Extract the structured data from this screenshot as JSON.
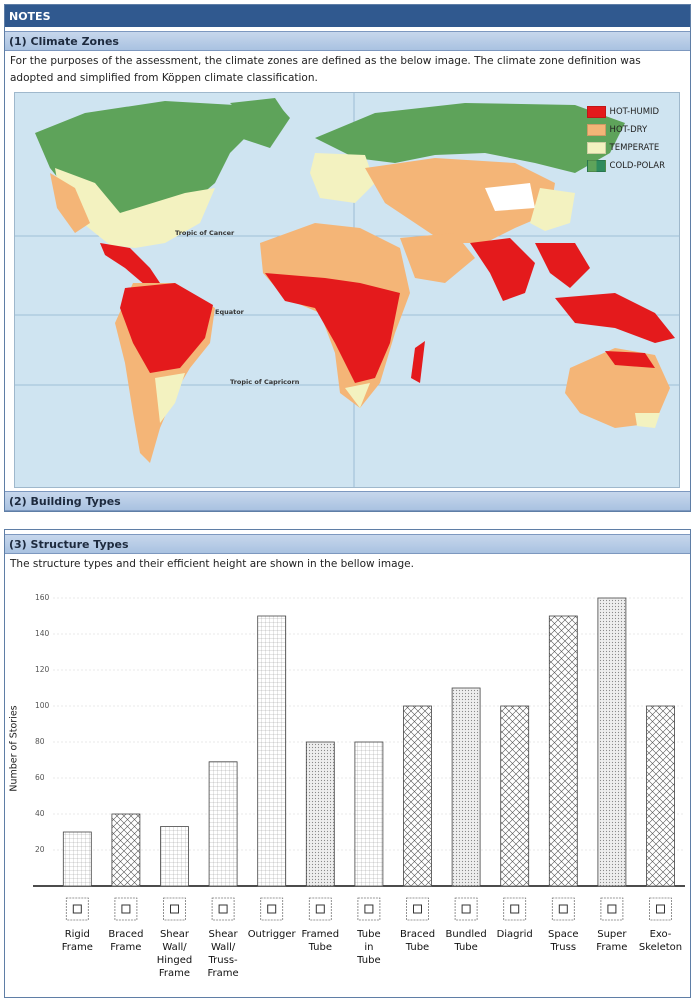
{
  "header": {
    "notes_label": "NOTES"
  },
  "climate": {
    "title": "(1) Climate Zones",
    "description_line1": "For the purposes of the assessment, the climate zones are defined as the below image. The climate zone definition was",
    "description_line2": "adopted and simplified from Köppen climate classification.",
    "map_labels": {
      "tropic_cancer": "Tropic of Cancer",
      "equator": "Equator",
      "tropic_capricorn": "Tropic of Capricorn"
    },
    "legend": [
      {
        "label": "HOT-HUMID",
        "color": "#e41a1c"
      },
      {
        "label": "HOT-DRY",
        "color": "#f4b577"
      },
      {
        "label": "TEMPERATE",
        "color": "#f3f2c0"
      },
      {
        "label": "COLD-POLAR",
        "color": "#5ea35a"
      }
    ]
  },
  "building": {
    "title": "(2) Building Types"
  },
  "structure": {
    "title": "(3) Structure Types",
    "description": "The structure types and their efficient height are shown in the bellow image."
  },
  "chart_data": {
    "type": "bar",
    "ylabel": "Number of Stories",
    "ylim": [
      0,
      160
    ],
    "yticks": [
      "20",
      "40",
      "60",
      "80",
      "100",
      "120",
      "140",
      "160"
    ],
    "categories": [
      "Rigid\nFrame",
      "Braced\nFrame",
      "Shear\nWall/\nHinged\nFrame",
      "Shear\nWall/\nTruss-\nFrame",
      "Outrigger",
      "Framed\nTube",
      "Tube\nin\nTube",
      "Braced\nTube",
      "Bundled\nTube",
      "Diagrid",
      "Space\nTruss",
      "Super\nFrame",
      "Exo-\nSkeleton"
    ],
    "values": [
      30,
      40,
      33,
      69,
      150,
      80,
      80,
      100,
      110,
      100,
      150,
      160,
      100
    ]
  }
}
